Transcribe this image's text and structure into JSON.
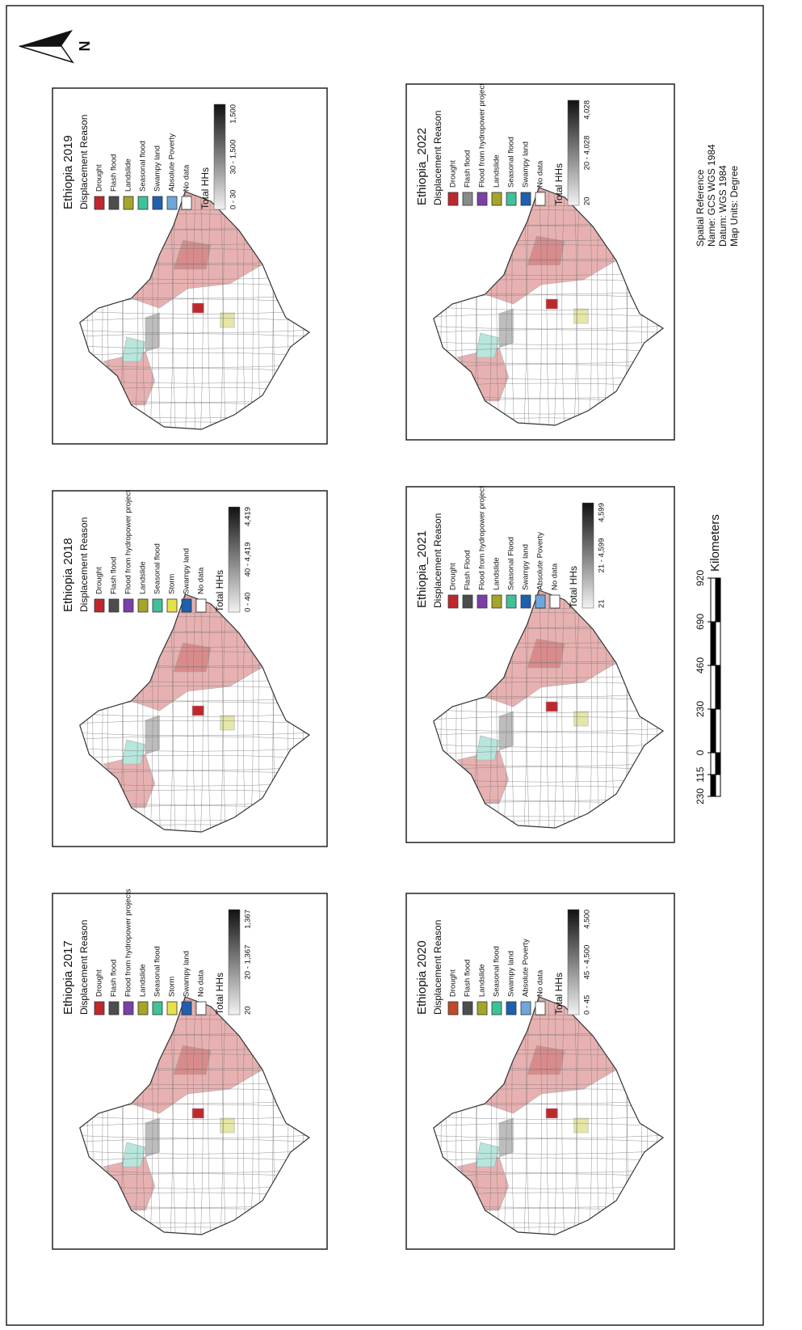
{
  "north": "N",
  "panels": [
    {
      "title": "Ethiopia 2017",
      "subtitle": "Displacement Reason",
      "legend": [
        {
          "label": "Drought",
          "color": "#c0272d"
        },
        {
          "label": "Flash flood",
          "color": "#4d4d4d"
        },
        {
          "label": "Flood from hydropower projects",
          "color": "#7b3fa8"
        },
        {
          "label": "Landslide",
          "color": "#a5a52a"
        },
        {
          "label": "Seasonal flood",
          "color": "#3fc19a"
        },
        {
          "label": "Storm",
          "color": "#e8e24a"
        },
        {
          "label": "Swampy land",
          "color": "#1f5fb0"
        },
        {
          "label": "No data",
          "color": "#ffffff"
        }
      ],
      "total_label": "Total HHs",
      "ramp_labels": [
        "20",
        "20 - 1,367",
        "1,367"
      ]
    },
    {
      "title": "Ethiopia 2018",
      "subtitle": "Displacement Reason",
      "legend": [
        {
          "label": "Drought",
          "color": "#c0272d"
        },
        {
          "label": "Flash flood",
          "color": "#4d4d4d"
        },
        {
          "label": "Flood from hydropower project",
          "color": "#7b3fa8"
        },
        {
          "label": "Landslide",
          "color": "#a5a52a"
        },
        {
          "label": "Seasonal flood",
          "color": "#3fc19a"
        },
        {
          "label": "Storm",
          "color": "#e8e24a"
        },
        {
          "label": "Swampy land",
          "color": "#1f5fb0"
        },
        {
          "label": "No data",
          "color": "#ffffff"
        }
      ],
      "total_label": "Total HHs",
      "ramp_labels": [
        "0 - 40",
        "40 - 4,419",
        "4,419"
      ]
    },
    {
      "title": "Ethiopia 2019",
      "subtitle": "Displacement Reason",
      "legend": [
        {
          "label": "Drought",
          "color": "#c0272d"
        },
        {
          "label": "Flash flood",
          "color": "#4d4d4d"
        },
        {
          "label": "Landslide",
          "color": "#a5a52a"
        },
        {
          "label": "Seasonal flood",
          "color": "#3fc19a"
        },
        {
          "label": "Swampy land",
          "color": "#1f5fb0"
        },
        {
          "label": "Absolute Poverty",
          "color": "#6fa7dc"
        },
        {
          "label": "No data",
          "color": "#ffffff"
        }
      ],
      "total_label": "Total HHs",
      "ramp_labels": [
        "0 - 30",
        "30 - 1,500",
        "1,500"
      ]
    },
    {
      "title": "Ethiopia 2020",
      "subtitle": "Displacement Reason",
      "legend": [
        {
          "label": "Drought",
          "color": "#c24a28"
        },
        {
          "label": "Flash flood",
          "color": "#4d4d4d"
        },
        {
          "label": "Landslide",
          "color": "#a5a52a"
        },
        {
          "label": "Seasonal flood",
          "color": "#3fc19a"
        },
        {
          "label": "Swampy land",
          "color": "#1f5fb0"
        },
        {
          "label": "Absolute Poverty",
          "color": "#6fa7dc"
        },
        {
          "label": "No data",
          "color": "#ffffff"
        }
      ],
      "total_label": "Total HHs",
      "ramp_labels": [
        "0 - 45",
        "45 - 4,500",
        "4,500"
      ]
    },
    {
      "title": "Ethiopia_2021",
      "subtitle": "Displacement Reason",
      "legend": [
        {
          "label": "Drought",
          "color": "#c0272d"
        },
        {
          "label": "Flash Flood",
          "color": "#4d4d4d"
        },
        {
          "label": "Flood from hydropower project",
          "color": "#7b3fa8"
        },
        {
          "label": "Landslide",
          "color": "#a5a52a"
        },
        {
          "label": "Seasonal Flood",
          "color": "#3fc19a"
        },
        {
          "label": "Swampy land",
          "color": "#1f5fb0"
        },
        {
          "label": "Absolute Poverty",
          "color": "#6fa7dc"
        },
        {
          "label": "No data",
          "color": "#ffffff"
        }
      ],
      "total_label": "Total HHs",
      "ramp_labels": [
        "21",
        "21 - 4,599",
        "4,599"
      ]
    },
    {
      "title": "Ethiopia_2022",
      "subtitle": "Displacement Reason",
      "legend": [
        {
          "label": "Drought",
          "color": "#c0272d"
        },
        {
          "label": "Flash flood",
          "color": "#8a8a8a"
        },
        {
          "label": "Flood from hydropower project",
          "color": "#7b3fa8"
        },
        {
          "label": "Landslide",
          "color": "#a5a52a"
        },
        {
          "label": "Seasonal flood",
          "color": "#3fc19a"
        },
        {
          "label": "Swampy land",
          "color": "#1f5fb0"
        },
        {
          "label": "No data",
          "color": "#ffffff"
        }
      ],
      "total_label": "Total HHs",
      "ramp_labels": [
        "20",
        "20 - 4,028",
        "4,028"
      ]
    }
  ],
  "scale": {
    "ticks": [
      {
        "value": -230,
        "label": "230"
      },
      {
        "value": -115,
        "label": "115"
      },
      0,
      230,
      460,
      690,
      920
    ],
    "unit": "Kilometers"
  },
  "spatial_reference": [
    "Spatial Reference",
    "Name: GCS WGS 1984",
    "Datum: WGS 1984",
    "Map Units: Degree"
  ]
}
